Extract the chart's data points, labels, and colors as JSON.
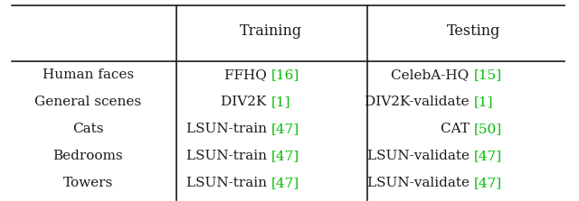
{
  "figsize": [
    6.4,
    2.23
  ],
  "dpi": 100,
  "bg_color": "#ffffff",
  "black_color": "#1a1a1a",
  "green_color": "#00bb00",
  "font_size": 11.0,
  "header_font_size": 11.5,
  "headers": [
    "Training",
    "Testing"
  ],
  "rows": [
    {
      "label": "Human faces",
      "training_black": "FFHQ ",
      "training_green": "[16]",
      "testing_black": "CelebA-HQ ",
      "testing_green": "[15]"
    },
    {
      "label": "General scenes",
      "training_black": "DIV2K ",
      "training_green": "[1]",
      "testing_black": "DIV2K-validate ",
      "testing_green": "[1]"
    },
    {
      "label": "Cats",
      "training_black": "LSUN-train ",
      "training_green": "[47]",
      "testing_black": "CAT ",
      "testing_green": "[50]"
    },
    {
      "label": "Bedrooms",
      "training_black": "LSUN-train ",
      "training_green": "[47]",
      "testing_black": "LSUN-validate ",
      "testing_green": "[47]"
    },
    {
      "label": "Towers",
      "training_black": "LSUN-train ",
      "training_green": "[47]",
      "testing_black": "LSUN-validate ",
      "testing_green": "[47]"
    }
  ]
}
